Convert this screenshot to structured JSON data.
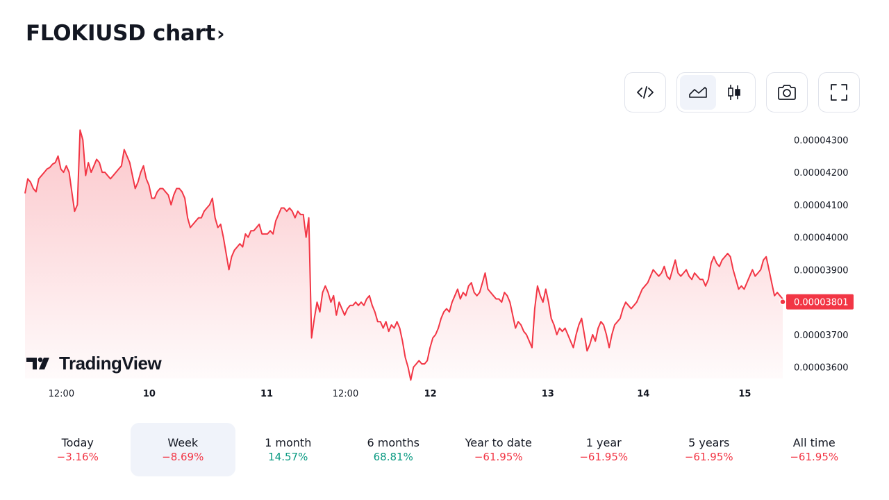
{
  "header": {
    "title": "FLOKIUSD chart",
    "chevron": "›"
  },
  "toolbar": {
    "embed_icon": "code-icon",
    "area_icon": "area-chart-icon",
    "candle_icon": "candlestick-icon",
    "snapshot_icon": "camera-icon",
    "fullscreen_icon": "fullscreen-icon",
    "active_chart_style": "area"
  },
  "logo": {
    "text": "TradingView"
  },
  "colors": {
    "line": "#f23645",
    "positive": "#089981",
    "negative": "#f23645",
    "active_bg": "#f0f3fa"
  },
  "chart_data": {
    "type": "area",
    "series": [
      {
        "values": [
          4.135e-05,
          4.18e-05,
          4.17e-05,
          4.15e-05,
          4.14e-05,
          4.18e-05,
          4.19e-05,
          4.2e-05,
          4.21e-05,
          4.215e-05,
          4.225e-05,
          4.23e-05,
          4.25e-05,
          4.21e-05,
          4.2e-05,
          4.22e-05,
          4.2e-05,
          4.14e-05,
          4.08e-05,
          4.1e-05,
          4.33e-05,
          4.3e-05,
          4.19e-05,
          4.23e-05,
          4.2e-05,
          4.22e-05,
          4.24e-05,
          4.23e-05,
          4.2e-05,
          4.2e-05,
          4.19e-05,
          4.18e-05,
          4.19e-05,
          4.2e-05,
          4.21e-05,
          4.22e-05,
          4.27e-05,
          4.25e-05,
          4.23e-05,
          4.19e-05,
          4.15e-05,
          4.17e-05,
          4.2e-05,
          4.22e-05,
          4.18e-05,
          4.16e-05,
          4.12e-05,
          4.12e-05,
          4.14e-05,
          4.15e-05,
          4.15e-05,
          4.14e-05,
          4.13e-05,
          4.1e-05,
          4.13e-05,
          4.15e-05,
          4.15e-05,
          4.14e-05,
          4.12e-05,
          4.06e-05,
          4.03e-05,
          4.04e-05,
          4.05e-05,
          4.06e-05,
          4.06e-05,
          4.08e-05,
          4.09e-05,
          4.1e-05,
          4.12e-05,
          4.06e-05,
          4.03e-05,
          4.04e-05,
          4e-05,
          3.95e-05,
          3.9e-05,
          3.94e-05,
          3.96e-05,
          3.97e-05,
          3.98e-05,
          3.97e-05,
          4.01e-05,
          4e-05,
          4.02e-05,
          4.02e-05,
          4.03e-05,
          4.04e-05,
          4.01e-05,
          4.01e-05,
          4.01e-05,
          4.02e-05,
          4.01e-05,
          4.05e-05,
          4.07e-05,
          4.09e-05,
          4.09e-05,
          4.08e-05,
          4.09e-05,
          4.08e-05,
          4.06e-05,
          4.08e-05,
          4.07e-05,
          4.07e-05,
          4e-05,
          4.06e-05,
          3.69e-05,
          3.75e-05,
          3.8e-05,
          3.77e-05,
          3.83e-05,
          3.85e-05,
          3.83e-05,
          3.8e-05,
          3.82e-05,
          3.76e-05,
          3.8e-05,
          3.78e-05,
          3.76e-05,
          3.78e-05,
          3.79e-05,
          3.79e-05,
          3.8e-05,
          3.79e-05,
          3.8e-05,
          3.79e-05,
          3.81e-05,
          3.82e-05,
          3.79e-05,
          3.77e-05,
          3.74e-05,
          3.74e-05,
          3.72e-05,
          3.74e-05,
          3.71e-05,
          3.73e-05,
          3.72e-05,
          3.74e-05,
          3.72e-05,
          3.68e-05,
          3.63e-05,
          3.6e-05,
          3.56e-05,
          3.6e-05,
          3.61e-05,
          3.62e-05,
          3.61e-05,
          3.61e-05,
          3.62e-05,
          3.66e-05,
          3.69e-05,
          3.7e-05,
          3.72e-05,
          3.75e-05,
          3.77e-05,
          3.78e-05,
          3.77e-05,
          3.8e-05,
          3.82e-05,
          3.84e-05,
          3.81e-05,
          3.83e-05,
          3.82e-05,
          3.85e-05,
          3.86e-05,
          3.83e-05,
          3.82e-05,
          3.83e-05,
          3.86e-05,
          3.89e-05,
          3.84e-05,
          3.83e-05,
          3.82e-05,
          3.81e-05,
          3.81e-05,
          3.8e-05,
          3.83e-05,
          3.82e-05,
          3.8e-05,
          3.76e-05,
          3.72e-05,
          3.74e-05,
          3.73e-05,
          3.71e-05,
          3.7e-05,
          3.68e-05,
          3.66e-05,
          3.78e-05,
          3.85e-05,
          3.82e-05,
          3.8e-05,
          3.84e-05,
          3.8e-05,
          3.75e-05,
          3.73e-05,
          3.7e-05,
          3.72e-05,
          3.71e-05,
          3.72e-05,
          3.7e-05,
          3.68e-05,
          3.66e-05,
          3.7e-05,
          3.73e-05,
          3.75e-05,
          3.7e-05,
          3.65e-05,
          3.67e-05,
          3.7e-05,
          3.68e-05,
          3.72e-05,
          3.74e-05,
          3.73e-05,
          3.7e-05,
          3.66e-05,
          3.7e-05,
          3.73e-05,
          3.74e-05,
          3.75e-05,
          3.78e-05,
          3.8e-05,
          3.79e-05,
          3.78e-05,
          3.79e-05,
          3.8e-05,
          3.82e-05,
          3.84e-05,
          3.85e-05,
          3.86e-05,
          3.88e-05,
          3.9e-05,
          3.89e-05,
          3.88e-05,
          3.89e-05,
          3.91e-05,
          3.88e-05,
          3.87e-05,
          3.9e-05,
          3.93e-05,
          3.89e-05,
          3.88e-05,
          3.89e-05,
          3.9e-05,
          3.88e-05,
          3.87e-05,
          3.89e-05,
          3.88e-05,
          3.87e-05,
          3.87e-05,
          3.85e-05,
          3.87e-05,
          3.92e-05,
          3.94e-05,
          3.92e-05,
          3.91e-05,
          3.93e-05,
          3.94e-05,
          3.95e-05,
          3.94e-05,
          3.9e-05,
          3.87e-05,
          3.84e-05,
          3.85e-05,
          3.84e-05,
          3.86e-05,
          3.88e-05,
          3.9e-05,
          3.88e-05,
          3.89e-05,
          3.9e-05,
          3.93e-05,
          3.94e-05,
          3.9e-05,
          3.86e-05,
          3.82e-05,
          3.83e-05,
          3.82e-05,
          3.81e-05
        ]
      }
    ],
    "yticks": [
      "0.00004300",
      "0.00004200",
      "0.00004100",
      "0.00004000",
      "0.00003900",
      "0.00003800",
      "0.00003700",
      "0.00003600"
    ],
    "ytick_values": [
      4.3e-05,
      4.2e-05,
      4.1e-05,
      4e-05,
      3.9e-05,
      3.8e-05,
      3.7e-05,
      3.6e-05
    ],
    "ylim": [
      3.565e-05,
      4.335e-05
    ],
    "x_ticks": [
      {
        "label": "12:00",
        "pos": 0.048
      },
      {
        "label": "10",
        "pos": 0.164
      },
      {
        "label": "11",
        "pos": 0.319
      },
      {
        "label": "12:00",
        "pos": 0.423
      },
      {
        "label": "12",
        "pos": 0.535
      },
      {
        "label": "13",
        "pos": 0.69
      },
      {
        "label": "14",
        "pos": 0.816
      },
      {
        "label": "15",
        "pos": 0.95
      }
    ],
    "last_price_label": "0.00003801",
    "last_price": 3.801e-05,
    "grid": false
  },
  "periods": [
    {
      "label": "Today",
      "value": "−3.16%",
      "trend": "neg",
      "active": false
    },
    {
      "label": "Week",
      "value": "−8.69%",
      "trend": "neg",
      "active": true
    },
    {
      "label": "1 month",
      "value": "14.57%",
      "trend": "pos",
      "active": false
    },
    {
      "label": "6 months",
      "value": "68.81%",
      "trend": "pos",
      "active": false
    },
    {
      "label": "Year to date",
      "value": "−61.95%",
      "trend": "neg",
      "active": false
    },
    {
      "label": "1 year",
      "value": "−61.95%",
      "trend": "neg",
      "active": false
    },
    {
      "label": "5 years",
      "value": "−61.95%",
      "trend": "neg",
      "active": false
    },
    {
      "label": "All time",
      "value": "−61.95%",
      "trend": "neg",
      "active": false
    }
  ]
}
